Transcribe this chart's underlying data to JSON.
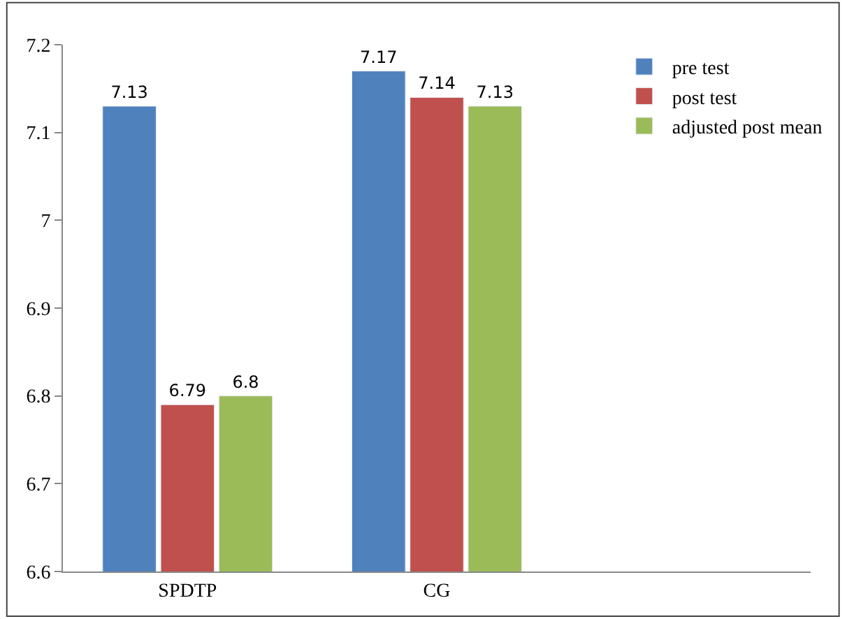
{
  "chart_data": {
    "type": "bar",
    "categories": [
      "SPDTP",
      "CG",
      null
    ],
    "series": [
      {
        "name": "pre test",
        "color": "#4f81bd",
        "values": [
          7.13,
          7.17,
          null
        ]
      },
      {
        "name": "post test",
        "color": "#c0504d",
        "values": [
          6.79,
          7.14,
          null
        ]
      },
      {
        "name": "adjusted post mean",
        "color": "#9bbb59",
        "values": [
          6.8,
          7.13,
          null
        ]
      }
    ],
    "ylim": [
      6.6,
      7.2
    ],
    "yticks": [
      6.6,
      6.7,
      6.8,
      6.9,
      7,
      7.1,
      7.2
    ],
    "data_labels": true,
    "legend": "top right"
  }
}
